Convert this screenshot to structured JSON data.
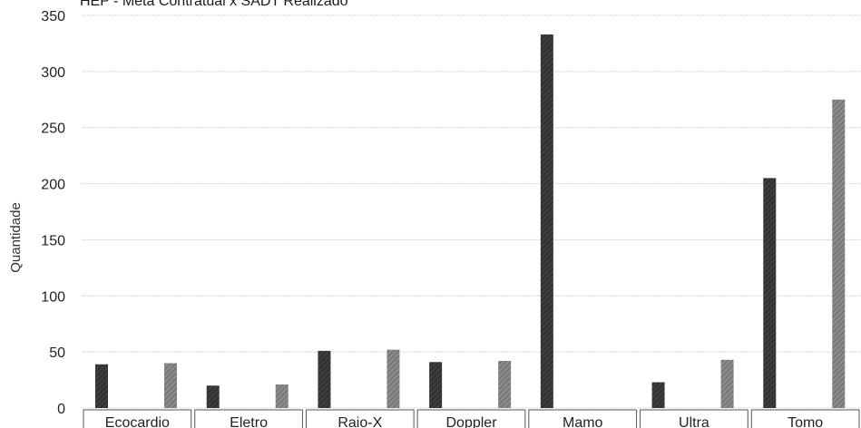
{
  "chart_data": {
    "type": "bar",
    "title": "HEP - Meta Contratual x SADT Realizado",
    "ylabel": "Quantidade",
    "xlabel": "",
    "ylim": [
      0,
      350
    ],
    "yticks": [
      0,
      50,
      100,
      150,
      200,
      250,
      300,
      350
    ],
    "grid": true,
    "legend": "none",
    "categories": [
      "Ecocardio",
      "Eletro",
      "Raio-X",
      "Doppler",
      "Mamo",
      "Ultra",
      "Tomo"
    ],
    "series": [
      {
        "values": [
          39,
          20,
          51,
          41,
          333,
          23,
          205
        ],
        "color": "#3d3d3d"
      },
      {
        "values": [
          40,
          21,
          52,
          42,
          0,
          43,
          275
        ],
        "color": "#858585"
      }
    ]
  }
}
